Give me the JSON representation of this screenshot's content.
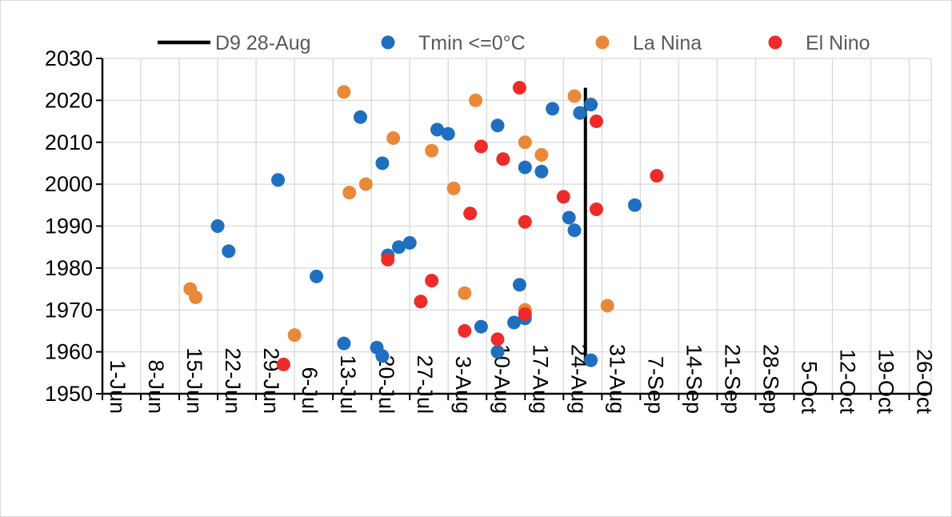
{
  "chart_data": {
    "type": "scatter",
    "title": "",
    "xlabel": "",
    "ylabel": "",
    "x_unit": "day of year (1 = 1-Jun)",
    "xlim": [
      1,
      152
    ],
    "ylim": [
      1950,
      2030
    ],
    "y_ticks": [
      1950,
      1960,
      1970,
      1980,
      1990,
      2000,
      2010,
      2020,
      2030
    ],
    "x_ticks": [
      {
        "label": "1-Jun",
        "x": 1
      },
      {
        "label": "8-Jun",
        "x": 8
      },
      {
        "label": "15-Jun",
        "x": 15
      },
      {
        "label": "22-Jun",
        "x": 22
      },
      {
        "label": "29-Jun",
        "x": 29
      },
      {
        "label": "6-Jul",
        "x": 36
      },
      {
        "label": "13-Jul",
        "x": 43
      },
      {
        "label": "20-Jul",
        "x": 50
      },
      {
        "label": "27-Jul",
        "x": 57
      },
      {
        "label": "3-Aug",
        "x": 64
      },
      {
        "label": "10-Aug",
        "x": 71
      },
      {
        "label": "17-Aug",
        "x": 78
      },
      {
        "label": "24-Aug",
        "x": 85
      },
      {
        "label": "31-Aug",
        "x": 92
      },
      {
        "label": "7-Sep",
        "x": 99
      },
      {
        "label": "14-Sep",
        "x": 106
      },
      {
        "label": "21-Sep",
        "x": 113
      },
      {
        "label": "28-Sep",
        "x": 120
      },
      {
        "label": "5-Oct",
        "x": 127
      },
      {
        "label": "12-Oct",
        "x": 134
      },
      {
        "label": "19-Oct",
        "x": 141
      },
      {
        "label": "26-Oct",
        "x": 148
      }
    ],
    "grid": true,
    "legend_position": "top",
    "vline": {
      "name": "D9 28-Aug",
      "x": 89,
      "y_range": [
        1957,
        2023
      ],
      "color": "#000000"
    },
    "series": [
      {
        "name": "Tmin <=0°C",
        "color": "#1f6fc0",
        "points": [
          {
            "x": 22,
            "y": 1990
          },
          {
            "x": 24,
            "y": 1984
          },
          {
            "x": 33,
            "y": 2001
          },
          {
            "x": 40,
            "y": 1978
          },
          {
            "x": 45,
            "y": 1962
          },
          {
            "x": 48,
            "y": 2016
          },
          {
            "x": 51,
            "y": 1961
          },
          {
            "x": 52,
            "y": 2005
          },
          {
            "x": 52,
            "y": 1959
          },
          {
            "x": 53,
            "y": 1983
          },
          {
            "x": 55,
            "y": 1985
          },
          {
            "x": 57,
            "y": 1986
          },
          {
            "x": 62,
            "y": 2013
          },
          {
            "x": 64,
            "y": 2012
          },
          {
            "x": 70,
            "y": 1966
          },
          {
            "x": 73,
            "y": 2014
          },
          {
            "x": 73,
            "y": 1960
          },
          {
            "x": 76,
            "y": 1967
          },
          {
            "x": 77,
            "y": 1976
          },
          {
            "x": 78,
            "y": 2004
          },
          {
            "x": 78,
            "y": 1968
          },
          {
            "x": 81,
            "y": 2003
          },
          {
            "x": 83,
            "y": 2018
          },
          {
            "x": 86,
            "y": 1992
          },
          {
            "x": 87,
            "y": 1989
          },
          {
            "x": 88,
            "y": 2017
          },
          {
            "x": 90,
            "y": 2019
          },
          {
            "x": 90,
            "y": 1958
          },
          {
            "x": 98,
            "y": 1995
          }
        ]
      },
      {
        "name": "La Nina",
        "color": "#e8893a",
        "points": [
          {
            "x": 17,
            "y": 1975
          },
          {
            "x": 18,
            "y": 1973
          },
          {
            "x": 36,
            "y": 1964
          },
          {
            "x": 45,
            "y": 2022
          },
          {
            "x": 46,
            "y": 1998
          },
          {
            "x": 49,
            "y": 2000
          },
          {
            "x": 54,
            "y": 2011
          },
          {
            "x": 61,
            "y": 2008
          },
          {
            "x": 65,
            "y": 1999
          },
          {
            "x": 67,
            "y": 1974
          },
          {
            "x": 69,
            "y": 2020
          },
          {
            "x": 78,
            "y": 2010
          },
          {
            "x": 78,
            "y": 1970
          },
          {
            "x": 81,
            "y": 2007
          },
          {
            "x": 87,
            "y": 2021
          },
          {
            "x": 93,
            "y": 1971
          }
        ]
      },
      {
        "name": "El Nino",
        "color": "#ee2b2b",
        "points": [
          {
            "x": 34,
            "y": 1957
          },
          {
            "x": 53,
            "y": 1982
          },
          {
            "x": 59,
            "y": 1972
          },
          {
            "x": 61,
            "y": 1977
          },
          {
            "x": 67,
            "y": 1965
          },
          {
            "x": 68,
            "y": 1993
          },
          {
            "x": 70,
            "y": 2009
          },
          {
            "x": 73,
            "y": 1963
          },
          {
            "x": 74,
            "y": 2006
          },
          {
            "x": 77,
            "y": 2023
          },
          {
            "x": 78,
            "y": 1991
          },
          {
            "x": 78,
            "y": 1969
          },
          {
            "x": 85,
            "y": 1997
          },
          {
            "x": 91,
            "y": 2015
          },
          {
            "x": 91,
            "y": 1994
          },
          {
            "x": 102,
            "y": 2002
          }
        ]
      }
    ]
  }
}
